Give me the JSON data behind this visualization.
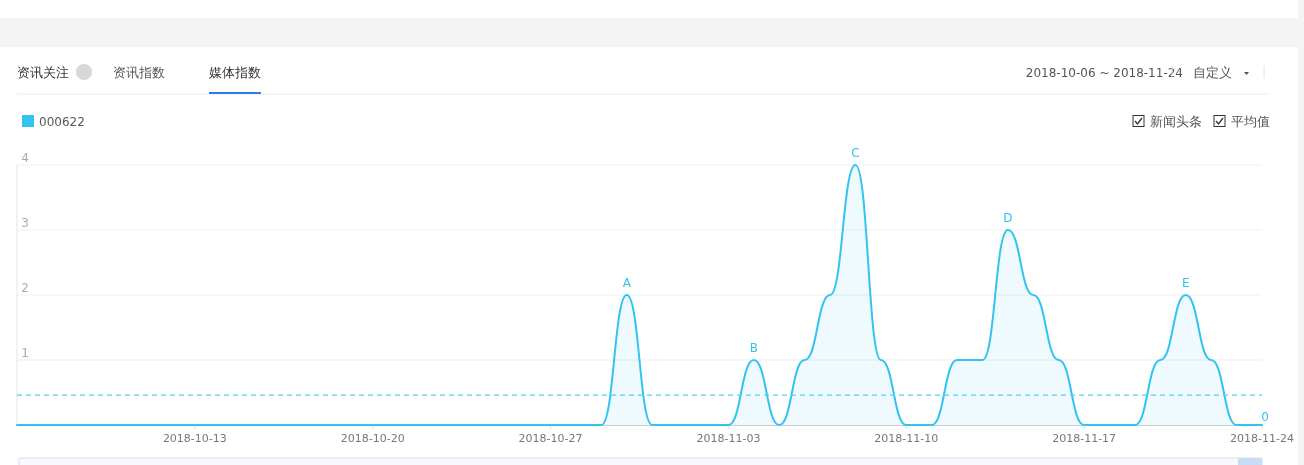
{
  "chart_data": {
    "type": "area",
    "title": "资讯关注",
    "subtitle": "2018-10-06 ~ 2018-11-24",
    "x": [
      "2018-10-06",
      "2018-10-07",
      "2018-10-08",
      "2018-10-09",
      "2018-10-10",
      "2018-10-11",
      "2018-10-12",
      "2018-10-13",
      "2018-10-14",
      "2018-10-15",
      "2018-10-16",
      "2018-10-17",
      "2018-10-18",
      "2018-10-19",
      "2018-10-20",
      "2018-10-21",
      "2018-10-22",
      "2018-10-23",
      "2018-10-24",
      "2018-10-25",
      "2018-10-26",
      "2018-10-27",
      "2018-10-28",
      "2018-10-29",
      "2018-10-30",
      "2018-10-31",
      "2018-11-01",
      "2018-11-02",
      "2018-11-03",
      "2018-11-04",
      "2018-11-05",
      "2018-11-06",
      "2018-11-07",
      "2018-11-08",
      "2018-11-09",
      "2018-11-10",
      "2018-11-11",
      "2018-11-12",
      "2018-11-13",
      "2018-11-14",
      "2018-11-15",
      "2018-11-16",
      "2018-11-17",
      "2018-11-18",
      "2018-11-19",
      "2018-11-20",
      "2018-11-21",
      "2018-11-22",
      "2018-11-23",
      "2018-11-24"
    ],
    "series": [
      {
        "name": "000622",
        "color": "#33c3f1",
        "values": [
          0,
          0,
          0,
          0,
          0,
          0,
          0,
          0,
          0,
          0,
          0,
          0,
          0,
          0,
          0,
          0,
          0,
          0,
          0,
          0,
          0,
          0,
          0,
          0,
          2,
          0,
          0,
          0,
          0,
          1,
          0,
          1,
          2,
          4,
          1,
          0,
          0,
          1,
          1,
          3,
          2,
          1,
          0,
          0,
          0,
          1,
          2,
          1,
          0,
          0
        ]
      }
    ],
    "xlim": [
      "2018-10-06",
      "2018-11-24"
    ],
    "xticks": [
      "2018-10-13",
      "2018-10-20",
      "2018-10-27",
      "2018-11-03",
      "2018-11-10",
      "2018-11-17",
      "2018-11-24"
    ],
    "ylim": [
      0,
      4
    ],
    "yticks": [
      1,
      2,
      3,
      4
    ],
    "grid": "y",
    "legend": "top left",
    "ref_lines": [
      {
        "axis": "y",
        "value": 0.46,
        "line_style": "dashed",
        "color": "#5ccbf2"
      }
    ],
    "annotations": [
      "资讯指数",
      "媒体指数",
      "自定义",
      "新闻头条",
      "平均值",
      {
        "text": "A",
        "x": "2018-10-30",
        "y": 2
      },
      {
        "text": "B",
        "x": "2018-11-04",
        "y": 1
      },
      {
        "text": "C",
        "x": "2018-11-08",
        "y": 4
      },
      {
        "text": "D",
        "x": "2018-11-14",
        "y": 3
      },
      {
        "text": "E",
        "x": "2018-11-21",
        "y": 2
      },
      {
        "text": "0",
        "x": "2018-11-24",
        "y": 0
      }
    ]
  }
}
